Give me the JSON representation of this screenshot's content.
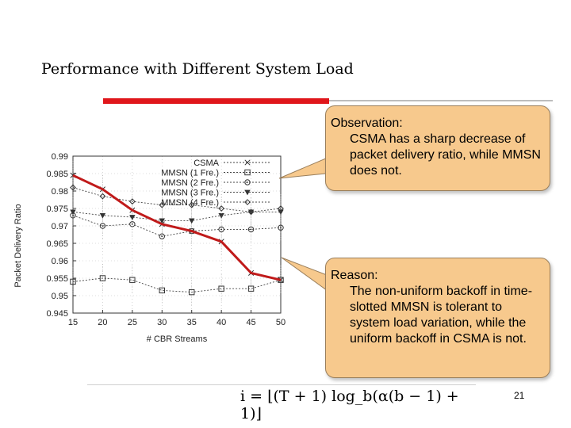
{
  "slide": {
    "title": "Performance  with  Different  System  Load",
    "observation_heading": "Observation:",
    "observation_body": "CSMA has a sharp decrease of packet delivery ratio, while MMSN does not.",
    "reason_heading": "Reason:",
    "reason_body": "The non-uniform backoff in time-slotted MMSN is tolerant to system load variation, while the uniform backoff in CSMA is not.",
    "formula": "i = ⌊(T + 1) log_b(α(b − 1) + 1)⌋",
    "page_number": "21",
    "accent_color": "#e0161b",
    "callout_color": "#f7c98d"
  },
  "chart_data": {
    "type": "line",
    "title": "",
    "xlabel": "# CBR Streams",
    "ylabel": "Packet Delivery Ratio",
    "x": [
      15,
      20,
      25,
      30,
      35,
      40,
      45,
      50
    ],
    "xlim": [
      15,
      50
    ],
    "ylim": [
      0.945,
      0.99
    ],
    "yticks": [
      0.945,
      0.95,
      0.955,
      0.96,
      0.965,
      0.97,
      0.975,
      0.98,
      0.985,
      0.99
    ],
    "ytick_labels": [
      "0.945",
      "0.95",
      "0.955",
      "0.96",
      "0.965",
      "0.97",
      "0.975",
      "0.98",
      "0.985",
      "0.99"
    ],
    "legend_position": "top-right",
    "series": [
      {
        "name": "CSMA",
        "marker": "x",
        "values": [
          0.9845,
          0.9805,
          0.9745,
          0.9705,
          0.9685,
          0.9655,
          0.9565,
          0.9545
        ]
      },
      {
        "name": "MMSN (1 Fre.)",
        "marker": "square",
        "values": [
          0.954,
          0.955,
          0.9545,
          0.9515,
          0.951,
          0.952,
          0.952,
          0.9545
        ]
      },
      {
        "name": "MMSN (2 Fre.)",
        "marker": "circle-dot",
        "values": [
          0.973,
          0.97,
          0.9705,
          0.967,
          0.9685,
          0.969,
          0.969,
          0.9695
        ]
      },
      {
        "name": "MMSN (3 Fre.)",
        "marker": "triangle-down",
        "values": [
          0.974,
          0.973,
          0.9725,
          0.9715,
          0.9715,
          0.973,
          0.974,
          0.974
        ]
      },
      {
        "name": "MMSN (4 Fre.)",
        "marker": "diamond",
        "values": [
          0.981,
          0.9785,
          0.977,
          0.976,
          0.976,
          0.975,
          0.974,
          0.975
        ]
      }
    ],
    "highlight_series": "CSMA",
    "highlight_color": "#c01a1a"
  }
}
